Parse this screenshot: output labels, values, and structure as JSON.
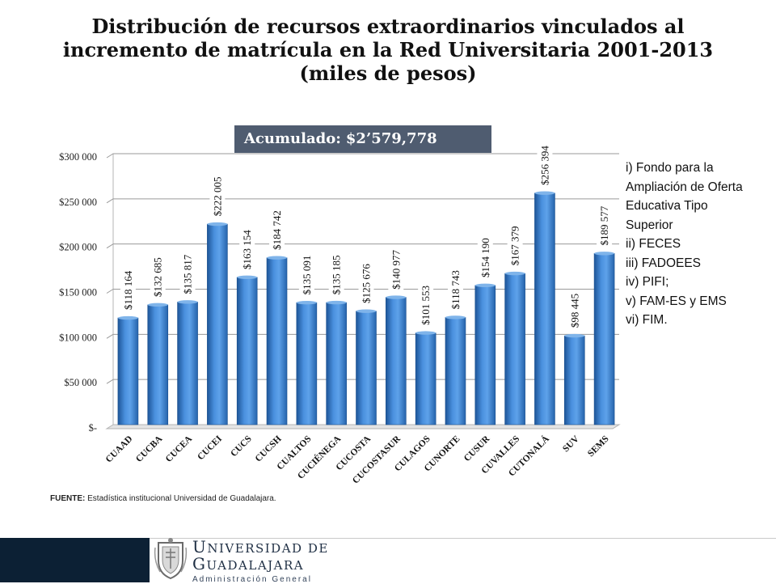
{
  "title": {
    "line1": "Distribución de recursos extraordinarios vinculados al",
    "line2": "incremento de matrícula en la Red Universitaria 2001-2013",
    "line3": "(miles de pesos)"
  },
  "accumulated": {
    "label": "Acumulado:",
    "value": "$2’579,778"
  },
  "legend_items": [
    "i) Fondo para la",
    "Ampliación de Oferta",
    "Educativa Tipo",
    "Superior",
    "ii) FECES",
    "iii) FADOEES",
    "iv) PIFI;",
    "v) FAM-ES y EMS",
    "vi) FIM."
  ],
  "source": {
    "label": "FUENTE:",
    "text": "Estadística  institucional  Universidad de Guadalajara."
  },
  "footer": {
    "uni_line1_cap": "U",
    "uni_line1_rest": "NIVERSIDAD DE",
    "uni_line2_cap": "G",
    "uni_line2_rest": "UADALAJARA",
    "uni_line3": "Administración General"
  },
  "colors": {
    "bar": "#3b7fd0",
    "bar_dark": "#1f5aa0",
    "bar_light": "#8ec0f0",
    "label_bg": "#ffffff",
    "accent": "#4f5c70",
    "footer": "#0c2034"
  },
  "chart_data": {
    "type": "bar",
    "categories": [
      "CUAAD",
      "CUCBA",
      "CUCEA",
      "CUCEI",
      "CUCS",
      "CUCSH",
      "CUALTOS",
      "CUCIÉNEGA",
      "CUCOSTA",
      "CUCOSTASUR",
      "CULAGOS",
      "CUNORTE",
      "CUSUR",
      "CUVALLES",
      "CUTONALÁ",
      "SUV",
      "SEMS"
    ],
    "values": [
      118164,
      132685,
      135817,
      222005,
      163154,
      184742,
      135091,
      135185,
      125676,
      140977,
      101553,
      118743,
      154190,
      167379,
      256394,
      98445,
      189577
    ],
    "data_labels": [
      "$118 164",
      "$132 685",
      "$135 817",
      "$222 005",
      "$163 154",
      "$184 742",
      "$135 091",
      "$135 185",
      "$125 676",
      "$140 977",
      "$101 553",
      "$118 743",
      "$154 190",
      "$167 379",
      "$256 394",
      "$98 445",
      "$189 577"
    ],
    "ylim": [
      0,
      300000
    ],
    "ytick_labels": [
      "$-",
      "$50 000",
      "$100 000",
      "$150 000",
      "$200 000",
      "$250 000",
      "$300 000"
    ],
    "grid": true,
    "xlabel": "",
    "ylabel": ""
  }
}
